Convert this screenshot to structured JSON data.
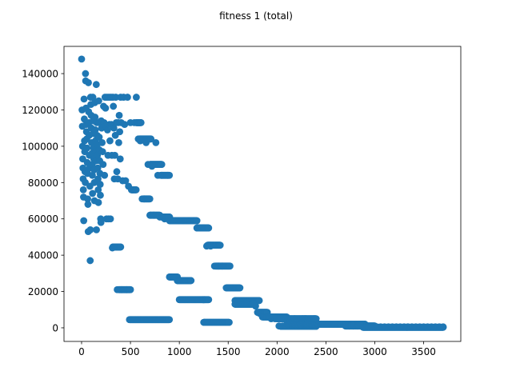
{
  "chart_data": {
    "type": "scatter",
    "title": "fitness 1 (total)",
    "xlabel": "",
    "ylabel": "",
    "xlim": [
      -180,
      3880
    ],
    "ylim": [
      -7500,
      155000
    ],
    "grid": false,
    "marker_color": "#1f77b4",
    "x_ticks": [
      0,
      500,
      1000,
      1500,
      2000,
      2500,
      3000,
      3500
    ],
    "x_tick_labels": [
      "0",
      "500",
      "1000",
      "1500",
      "2000",
      "2500",
      "3000",
      "3500"
    ],
    "y_ticks": [
      0,
      20000,
      40000,
      60000,
      80000,
      100000,
      120000,
      140000
    ],
    "y_tick_labels": [
      "0",
      "20000",
      "40000",
      "60000",
      "80000",
      "100000",
      "120000",
      "140000"
    ],
    "points": [
      [
        0,
        148000
      ],
      [
        5,
        120000
      ],
      [
        8,
        111000
      ],
      [
        10,
        100000
      ],
      [
        12,
        93000
      ],
      [
        14,
        88000
      ],
      [
        16,
        82000
      ],
      [
        18,
        76000
      ],
      [
        20,
        72000
      ],
      [
        22,
        59000
      ],
      [
        25,
        126000
      ],
      [
        28,
        115000
      ],
      [
        30,
        103000
      ],
      [
        32,
        97000
      ],
      [
        35,
        86000
      ],
      [
        38,
        80000
      ],
      [
        40,
        140000
      ],
      [
        42,
        136000
      ],
      [
        45,
        121000
      ],
      [
        48,
        112000
      ],
      [
        50,
        108000
      ],
      [
        52,
        104000
      ],
      [
        55,
        99000
      ],
      [
        58,
        91000
      ],
      [
        60,
        85000
      ],
      [
        62,
        71000
      ],
      [
        65,
        68000
      ],
      [
        68,
        53000
      ],
      [
        70,
        135000
      ],
      [
        72,
        119000
      ],
      [
        75,
        113000
      ],
      [
        78,
        106000
      ],
      [
        80,
        95000
      ],
      [
        82,
        88000
      ],
      [
        85,
        78000
      ],
      [
        88,
        37000
      ],
      [
        90,
        54000
      ],
      [
        92,
        127000
      ],
      [
        95,
        123000
      ],
      [
        98,
        117000
      ],
      [
        100,
        110000
      ],
      [
        102,
        102000
      ],
      [
        105,
        96000
      ],
      [
        108,
        90000
      ],
      [
        110,
        84000
      ],
      [
        112,
        74000
      ],
      [
        115,
        127000
      ],
      [
        118,
        114000
      ],
      [
        120,
        107000
      ],
      [
        122,
        99000
      ],
      [
        125,
        93000
      ],
      [
        128,
        87000
      ],
      [
        130,
        80000
      ],
      [
        132,
        70000
      ],
      [
        135,
        124000
      ],
      [
        138,
        116000
      ],
      [
        140,
        109000
      ],
      [
        142,
        103000
      ],
      [
        145,
        97000
      ],
      [
        148,
        92000
      ],
      [
        150,
        134000
      ],
      [
        152,
        54000
      ],
      [
        155,
        113000
      ],
      [
        158,
        106000
      ],
      [
        160,
        101000
      ],
      [
        162,
        95000
      ],
      [
        165,
        88000
      ],
      [
        168,
        82000
      ],
      [
        170,
        76000
      ],
      [
        172,
        69000
      ],
      [
        175,
        125000
      ],
      [
        178,
        113000
      ],
      [
        180,
        105000
      ],
      [
        182,
        98000
      ],
      [
        185,
        92000
      ],
      [
        188,
        85000
      ],
      [
        190,
        79000
      ],
      [
        192,
        73000
      ],
      [
        195,
        60000
      ],
      [
        198,
        58000
      ],
      [
        200,
        114000
      ],
      [
        205,
        110000
      ],
      [
        210,
        102000
      ],
      [
        215,
        97000
      ],
      [
        220,
        90000
      ],
      [
        225,
        122000
      ],
      [
        230,
        113000
      ],
      [
        235,
        84000
      ],
      [
        240,
        127000
      ],
      [
        245,
        121000
      ],
      [
        250,
        111000
      ],
      [
        255,
        60000
      ],
      [
        260,
        127000
      ],
      [
        265,
        109000
      ],
      [
        270,
        95000
      ],
      [
        275,
        60000
      ],
      [
        280,
        127000
      ],
      [
        285,
        112000
      ],
      [
        290,
        103000
      ],
      [
        295,
        60000
      ],
      [
        300,
        127000
      ],
      [
        305,
        112000
      ],
      [
        310,
        95000
      ],
      [
        315,
        44000
      ],
      [
        320,
        127000
      ],
      [
        325,
        122000
      ],
      [
        330,
        110000
      ],
      [
        335,
        82000
      ],
      [
        340,
        95000
      ],
      [
        345,
        106000
      ],
      [
        350,
        127000
      ],
      [
        355,
        113000
      ],
      [
        360,
        86000
      ],
      [
        365,
        21000
      ],
      [
        370,
        82000
      ],
      [
        375,
        113000
      ],
      [
        380,
        102000
      ],
      [
        385,
        117000
      ],
      [
        390,
        108000
      ],
      [
        395,
        93000
      ],
      [
        400,
        127000
      ],
      [
        405,
        113000
      ],
      [
        410,
        21000
      ],
      [
        420,
        81000
      ],
      [
        430,
        127000
      ],
      [
        440,
        112000
      ],
      [
        450,
        81000
      ],
      [
        460,
        21000
      ],
      [
        470,
        127000
      ],
      [
        480,
        78000
      ],
      [
        500,
        113000
      ],
      [
        520,
        76000
      ],
      [
        540,
        113000
      ],
      [
        560,
        127000
      ],
      [
        580,
        104000
      ],
      [
        600,
        103000
      ],
      [
        620,
        71000
      ],
      [
        640,
        71000
      ],
      [
        660,
        102000
      ],
      [
        680,
        90000
      ],
      [
        700,
        62000
      ],
      [
        720,
        89000
      ],
      [
        740,
        62000
      ],
      [
        760,
        102000
      ],
      [
        780,
        84000
      ],
      [
        800,
        61000
      ],
      [
        820,
        84000
      ],
      [
        850,
        60000
      ],
      [
        880,
        84000
      ],
      [
        900,
        28000
      ],
      [
        920,
        59000
      ],
      [
        940,
        59000
      ],
      [
        960,
        28000
      ],
      [
        980,
        26000
      ],
      [
        1000,
        59000
      ],
      [
        1050,
        59000
      ],
      [
        1100,
        59000
      ],
      [
        1150,
        59000
      ],
      [
        1200,
        55000
      ],
      [
        1250,
        55000
      ],
      [
        1280,
        45000
      ],
      [
        1320,
        45000
      ],
      [
        1360,
        34000
      ],
      [
        1400,
        34000
      ],
      [
        1440,
        34000
      ],
      [
        1500,
        22000
      ],
      [
        1540,
        22000
      ],
      [
        1580,
        14000
      ],
      [
        1620,
        15000
      ],
      [
        1660,
        15000
      ],
      [
        1700,
        15000
      ],
      [
        1740,
        15000
      ],
      [
        1780,
        12000
      ],
      [
        1820,
        8000
      ],
      [
        1860,
        7000
      ],
      [
        1900,
        6000
      ],
      [
        1940,
        5000
      ],
      [
        1980,
        5000
      ],
      [
        2020,
        1000
      ],
      [
        2060,
        1000
      ],
      [
        2100,
        5000
      ],
      [
        2140,
        1000
      ],
      [
        2180,
        5000
      ],
      [
        2220,
        1000
      ],
      [
        2260,
        5000
      ],
      [
        2300,
        1000
      ],
      [
        2340,
        1000
      ],
      [
        2380,
        5000
      ],
      [
        2420,
        2000
      ],
      [
        2460,
        2000
      ],
      [
        2500,
        2000
      ],
      [
        2540,
        2000
      ],
      [
        2580,
        2000
      ],
      [
        2620,
        2000
      ],
      [
        2660,
        2000
      ],
      [
        2700,
        2000
      ],
      [
        2740,
        1000
      ],
      [
        2780,
        1000
      ],
      [
        2820,
        1000
      ],
      [
        2860,
        1000
      ],
      [
        2900,
        500
      ],
      [
        2940,
        500
      ],
      [
        2980,
        500
      ],
      [
        3020,
        500
      ],
      [
        3060,
        500
      ],
      [
        3100,
        500
      ],
      [
        3140,
        500
      ],
      [
        3180,
        500
      ],
      [
        3220,
        500
      ],
      [
        3260,
        500
      ],
      [
        3300,
        500
      ],
      [
        3340,
        500
      ],
      [
        3380,
        500
      ],
      [
        3420,
        500
      ],
      [
        3460,
        500
      ],
      [
        3500,
        500
      ],
      [
        3540,
        500
      ],
      [
        3580,
        500
      ],
      [
        3620,
        500
      ],
      [
        3660,
        500
      ],
      [
        3700,
        500
      ]
    ],
    "clusters": [
      {
        "x_start": 320,
        "x_end": 400,
        "y": 44500,
        "step": 4
      },
      {
        "x_start": 380,
        "x_end": 500,
        "y": 21000,
        "step": 4
      },
      {
        "x_start": 490,
        "x_end": 900,
        "y": 4500,
        "step": 4
      },
      {
        "x_start": 560,
        "x_end": 610,
        "y": 113000,
        "step": 4
      },
      {
        "x_start": 590,
        "x_end": 710,
        "y": 104000,
        "step": 4
      },
      {
        "x_start": 510,
        "x_end": 560,
        "y": 76000,
        "step": 4
      },
      {
        "x_start": 630,
        "x_end": 700,
        "y": 71000,
        "step": 4
      },
      {
        "x_start": 700,
        "x_end": 800,
        "y": 62000,
        "step": 4
      },
      {
        "x_start": 700,
        "x_end": 820,
        "y": 90000,
        "step": 4
      },
      {
        "x_start": 810,
        "x_end": 900,
        "y": 84000,
        "step": 4
      },
      {
        "x_start": 820,
        "x_end": 900,
        "y": 61000,
        "step": 4
      },
      {
        "x_start": 900,
        "x_end": 1180,
        "y": 59000,
        "step": 4
      },
      {
        "x_start": 900,
        "x_end": 980,
        "y": 28000,
        "step": 4
      },
      {
        "x_start": 980,
        "x_end": 1120,
        "y": 26000,
        "step": 4
      },
      {
        "x_start": 1000,
        "x_end": 1300,
        "y": 15500,
        "step": 4
      },
      {
        "x_start": 1180,
        "x_end": 1300,
        "y": 55000,
        "step": 4
      },
      {
        "x_start": 1250,
        "x_end": 1510,
        "y": 3000,
        "step": 4
      },
      {
        "x_start": 1290,
        "x_end": 1420,
        "y": 45500,
        "step": 4
      },
      {
        "x_start": 1370,
        "x_end": 1520,
        "y": 34000,
        "step": 4
      },
      {
        "x_start": 1480,
        "x_end": 1620,
        "y": 22000,
        "step": 4
      },
      {
        "x_start": 1570,
        "x_end": 1820,
        "y": 15000,
        "step": 4
      },
      {
        "x_start": 1570,
        "x_end": 1760,
        "y": 13000,
        "step": 4
      },
      {
        "x_start": 1800,
        "x_end": 1900,
        "y": 8500,
        "step": 4
      },
      {
        "x_start": 1850,
        "x_end": 2100,
        "y": 6000,
        "step": 4
      },
      {
        "x_start": 2000,
        "x_end": 2400,
        "y": 5000,
        "step": 4
      },
      {
        "x_start": 2040,
        "x_end": 2400,
        "y": 800,
        "step": 4
      },
      {
        "x_start": 2100,
        "x_end": 2900,
        "y": 2000,
        "step": 4
      },
      {
        "x_start": 2700,
        "x_end": 3000,
        "y": 1000,
        "step": 4
      },
      {
        "x_start": 2880,
        "x_end": 3700,
        "y": 300,
        "step": 4
      }
    ]
  }
}
